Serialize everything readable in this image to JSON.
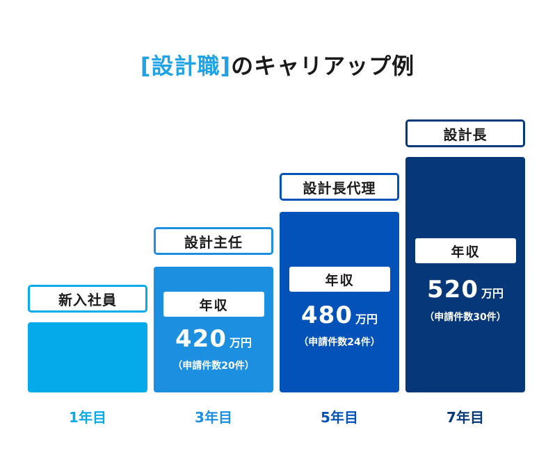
{
  "title": {
    "bracket_open": "[",
    "highlight": "設計職",
    "bracket_close": "]",
    "rest": "のキャリアップ例"
  },
  "colors": {
    "accent": "#1fa2e6",
    "stage1": "#05aaeb",
    "stage2": "#1c8fe0",
    "stage3": "#0252b9",
    "stage4": "#063779"
  },
  "stages": [
    {
      "year": "1年目",
      "role": "新入社員"
    },
    {
      "year": "3年目",
      "role": "設計主任",
      "salary_label": "年収",
      "salary": "420",
      "unit": "万円",
      "note": "（申請件数20件）"
    },
    {
      "year": "5年目",
      "role": "設計長代理",
      "salary_label": "年収",
      "salary": "480",
      "unit": "万円",
      "note": "（申請件数24件）"
    },
    {
      "year": "7年目",
      "role": "設計長",
      "salary_label": "年収",
      "salary": "520",
      "unit": "万円",
      "note": "（申請件数30件）"
    }
  ],
  "chart_data": {
    "type": "bar",
    "title": "[設計職]のキャリアップ例",
    "categories": [
      "1年目",
      "3年目",
      "5年目",
      "7年目"
    ],
    "series": [
      {
        "values": [
          null,
          420,
          480,
          520
        ]
      }
    ],
    "annotations": [
      "新入社員",
      "設計主任",
      "設計長代理",
      "設計長",
      "（申請件数20件）",
      "（申請件数24件）",
      "（申請件数30件）"
    ],
    "xlabel": "",
    "ylabel": "",
    "grid": false,
    "legend": "none"
  }
}
